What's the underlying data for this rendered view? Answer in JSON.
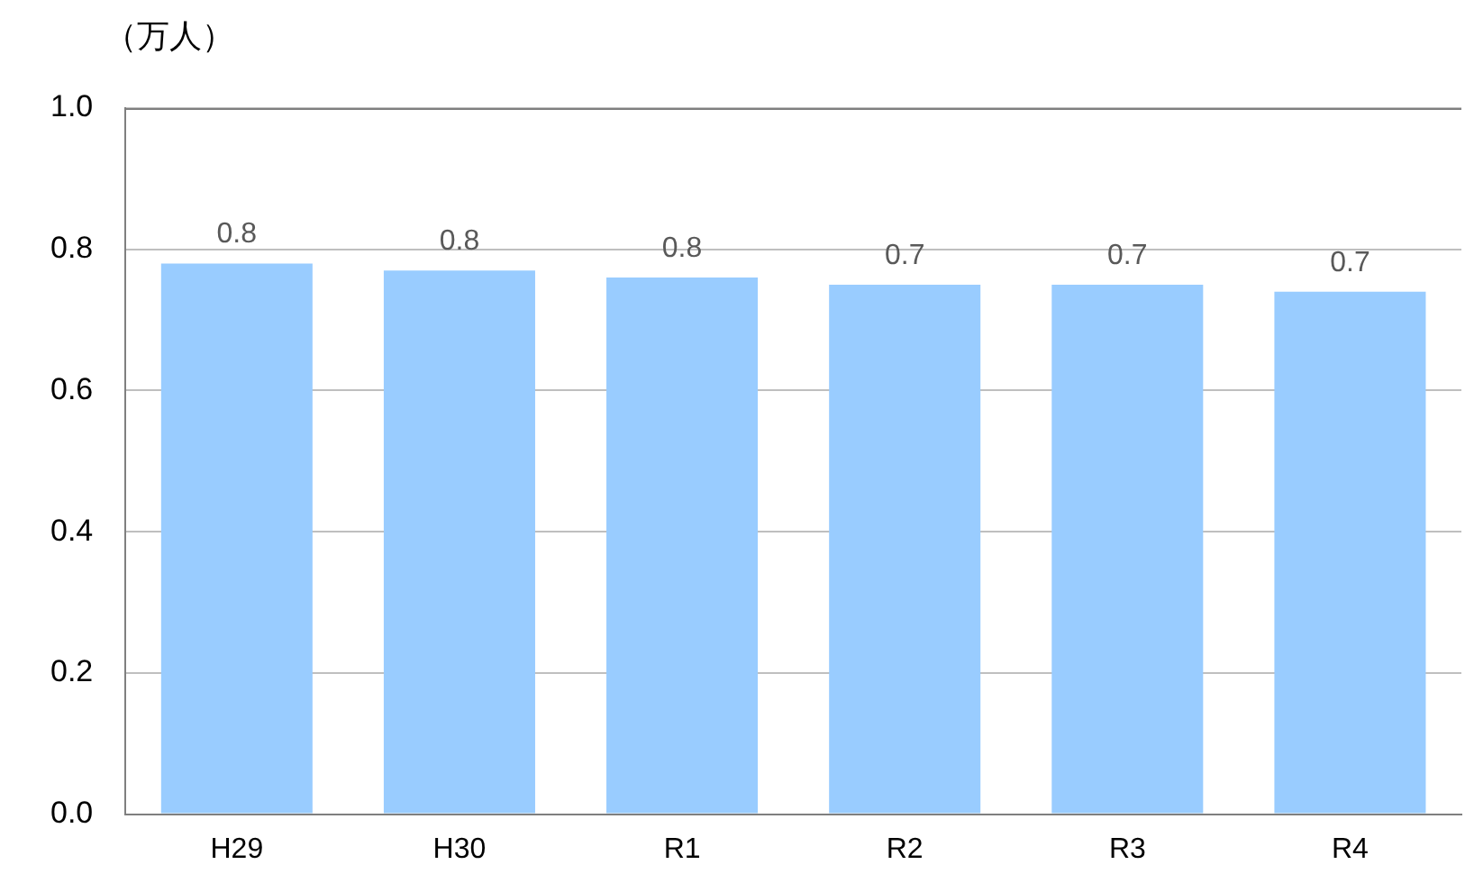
{
  "chart_data": {
    "type": "bar",
    "ylabel": "（万人）",
    "categories": [
      "H29",
      "H30",
      "R1",
      "R2",
      "R3",
      "R4"
    ],
    "values": [
      0.78,
      0.77,
      0.76,
      0.75,
      0.75,
      0.74
    ],
    "value_labels": [
      "0.8",
      "0.8",
      "0.8",
      "0.7",
      "0.7",
      "0.7"
    ],
    "color": "#99ccff",
    "ylim": [
      0,
      1.0
    ],
    "yticks": [
      {
        "value": 0,
        "label": "0.0"
      },
      {
        "value": 0.2,
        "label": "0.2"
      },
      {
        "value": 0.4,
        "label": "0.4"
      },
      {
        "value": 0.6,
        "label": "0.6"
      },
      {
        "value": 0.8,
        "label": "0.8"
      },
      {
        "value": 1.0,
        "label": "1.0"
      }
    ],
    "grid": "y",
    "legend": false
  }
}
